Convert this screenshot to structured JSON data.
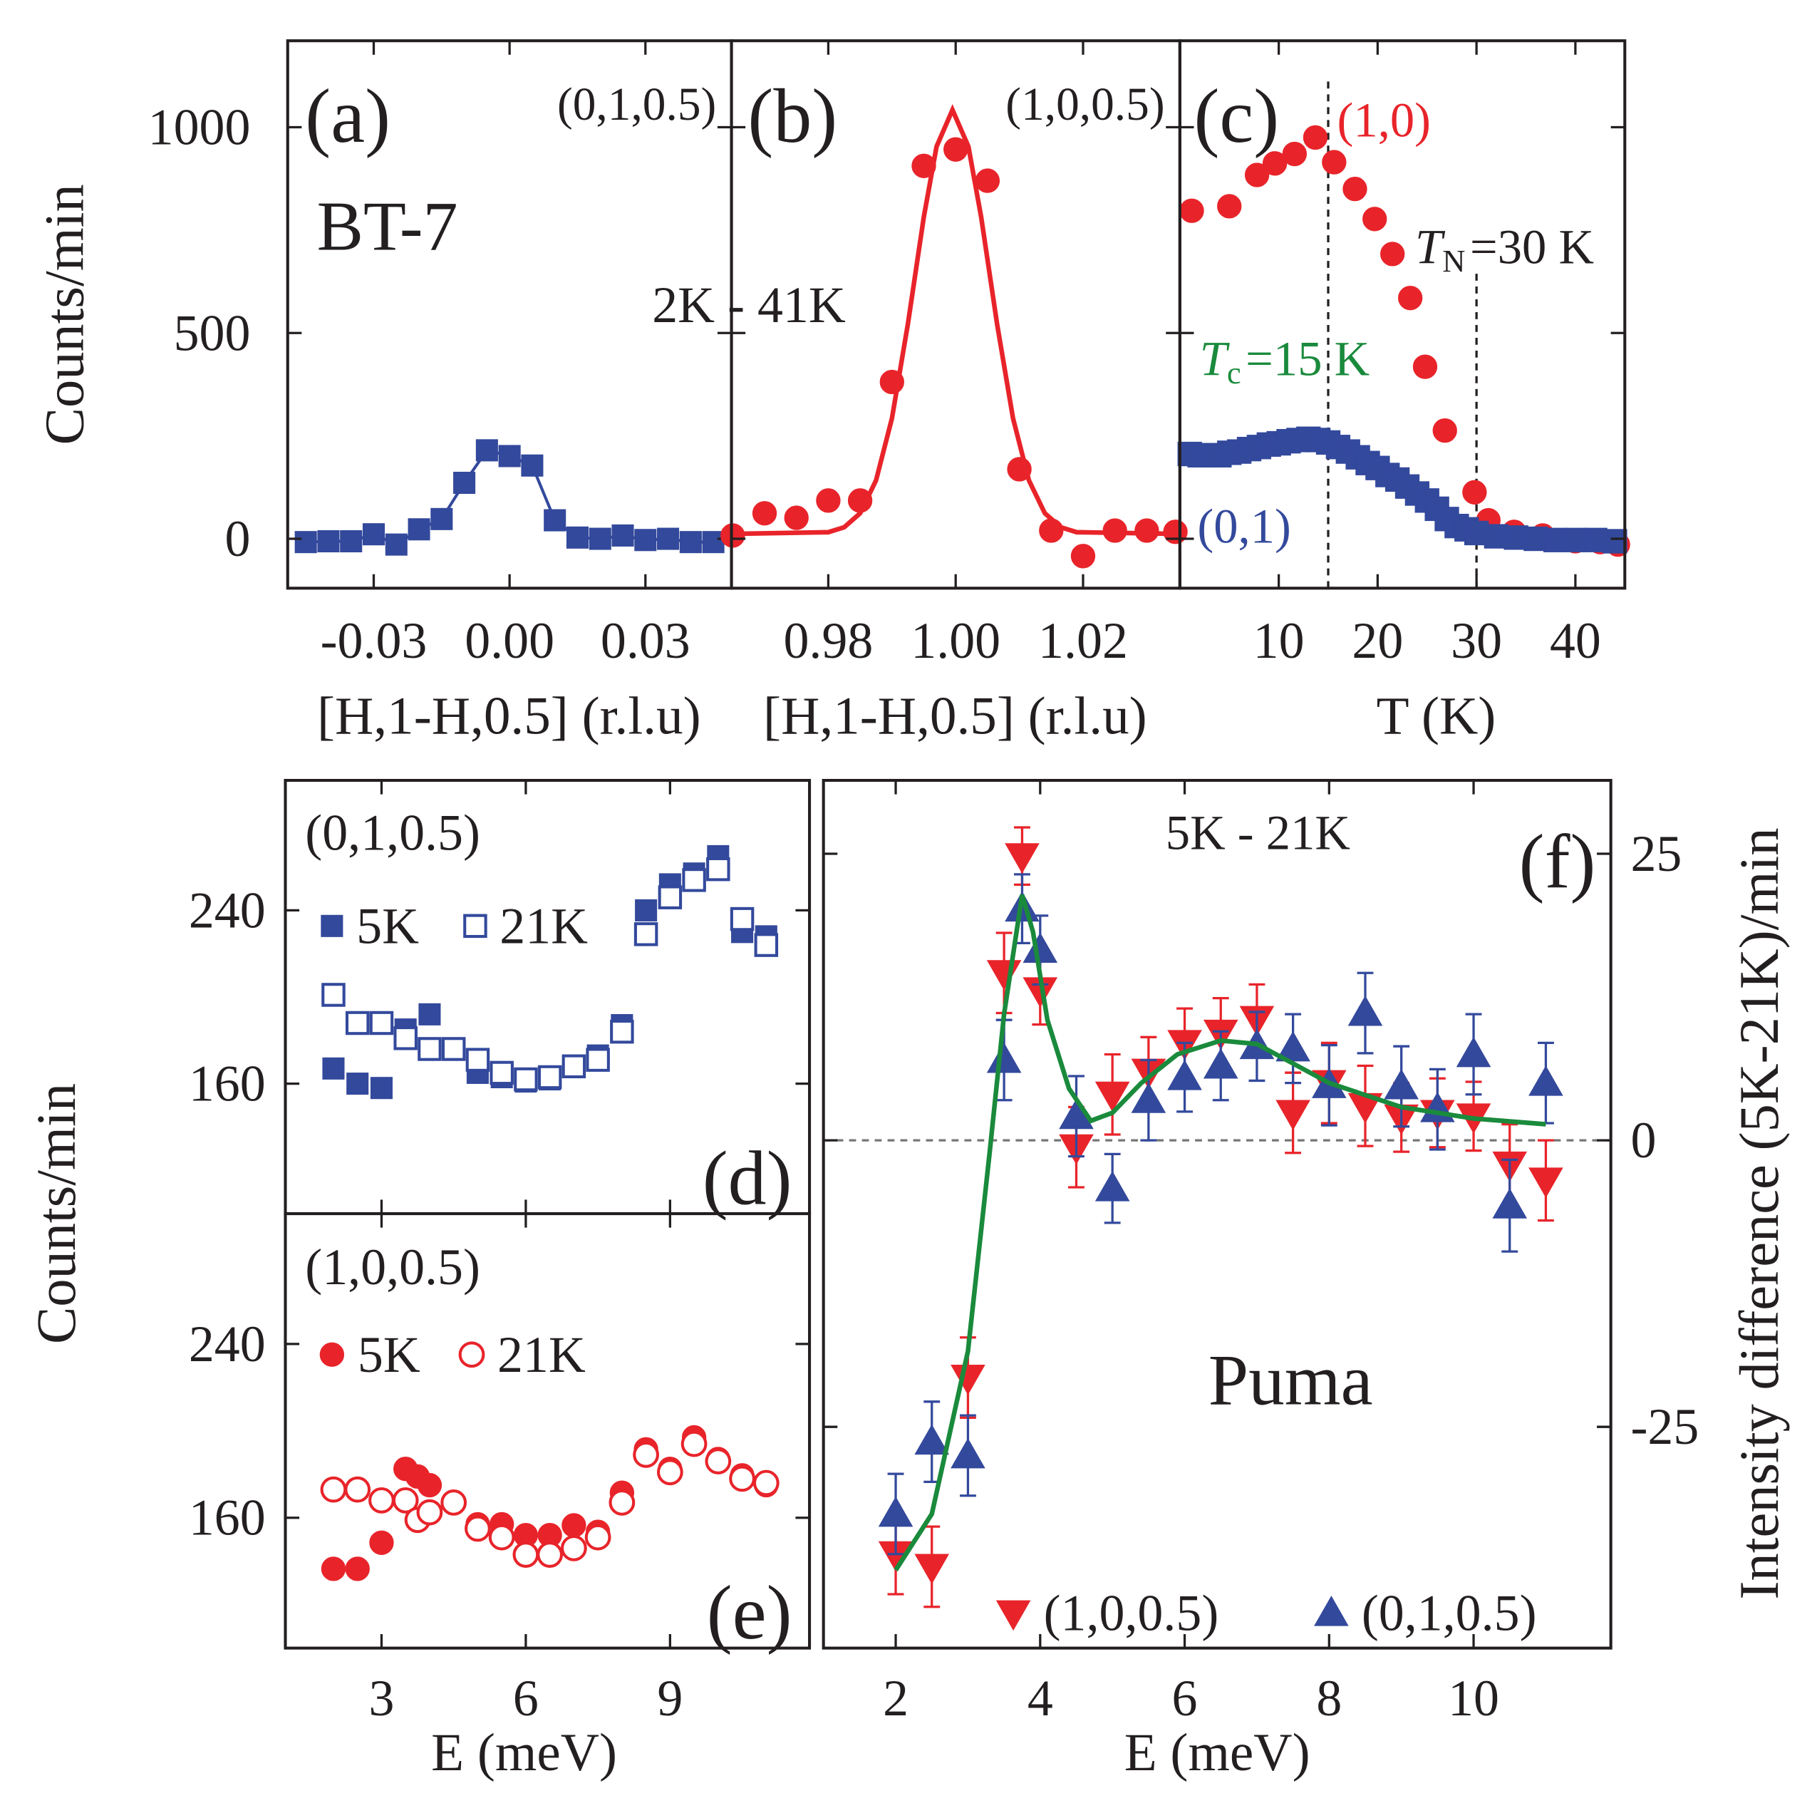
{
  "chart_data": [
    {
      "type": "scatter",
      "texts": [
        "(a)",
        "(0,1,0.5)",
        "BT-7"
      ],
      "xlabel": "[H,1-H,0.5] (r.l.u)",
      "ylabel": "Counts/min",
      "xlim": [
        -0.049,
        0.049
      ],
      "ylim": [
        -120,
        1210
      ],
      "xticks": [
        -0.03,
        {
          "value": 0,
          "label": "0.00"
        },
        0.03
      ],
      "yticks": [
        0,
        500,
        1000
      ],
      "series": [
        {
          "color": "#33499c",
          "marker": "square",
          "connect": true,
          "x": [
            -0.045,
            -0.04,
            -0.035,
            -0.03,
            -0.025,
            -0.02,
            -0.015,
            -0.01,
            -0.005,
            0,
            0.005,
            0.01,
            0.015,
            0.02,
            0.025,
            0.03,
            0.035,
            0.04,
            0.045
          ],
          "values": [
            -8,
            -6,
            -6,
            11,
            -14,
            23,
            48,
            136,
            215,
            201,
            178,
            45,
            3,
            0,
            8,
            -3,
            0,
            -8,
            -8
          ]
        }
      ]
    },
    {
      "type": "scatter",
      "texts": [
        "(b)",
        "(1,0,0.5)",
        "2K - 41K"
      ],
      "xlabel": "[H,1-H,0.5] (r.l.u)",
      "xlim": [
        0.9648,
        1.0352
      ],
      "ylim": [
        -120,
        1210
      ],
      "xticks": [
        0.98,
        {
          "value": 1,
          "label": "1.00"
        },
        1.02
      ],
      "yticks": [
        0,
        500,
        1000
      ],
      "ytick_labels": false,
      "series": [
        {
          "color": "#e8242a",
          "marker": "circle",
          "connect": false,
          "x": [
            0.965,
            0.97,
            0.975,
            0.98,
            0.985,
            0.99,
            0.995,
            1.0,
            1.005,
            1.01,
            1.015,
            1.02,
            1.025,
            1.03,
            1.0345
          ],
          "values": [
            8,
            62,
            51,
            93,
            93,
            381,
            906,
            946,
            870,
            169,
            20,
            -42,
            20,
            20,
            17
          ]
        },
        {
          "color": "#e8242a",
          "marker": "none",
          "connect": true,
          "x": [
            0.965,
            0.98,
            0.9825,
            0.985,
            0.9875,
            0.99,
            0.9925,
            0.995,
            0.997,
            0.9995,
            1.002,
            1.004,
            1.0065,
            1.009,
            1.0115,
            1.014,
            1.0165,
            1.019,
            1.035
          ],
          "values": [
            12,
            16,
            28,
            62,
            142,
            293,
            522,
            782,
            953,
            1042,
            953,
            782,
            522,
            293,
            142,
            62,
            28,
            16,
            12
          ]
        }
      ]
    },
    {
      "type": "scatter",
      "texts": [
        "(c)",
        "(1,0)",
        "(0,1)",
        {
          "symbol": "T",
          "sub": "N",
          "text": "=30 K"
        },
        {
          "symbol": "T",
          "sub": "c",
          "text": "=15 K"
        }
      ],
      "xlabel": "T (K)",
      "xlim": [
        0,
        45
      ],
      "ylim": [
        -120,
        1210
      ],
      "xticks": [
        10,
        20,
        30,
        40
      ],
      "yticks": [
        0,
        500,
        1000
      ],
      "ytick_labels": false,
      "vlines": [
        15,
        30
      ],
      "series": [
        {
          "color": "#e8242a",
          "marker": "circle",
          "connect": false,
          "x": [
            1.2,
            5.0,
            7.8,
            9.6,
            11.6,
            13.7,
            15.6,
            17.7,
            19.7,
            21.5,
            23.3,
            24.8,
            26.8,
            29.8,
            31.2,
            33.8,
            36.7,
            40,
            42.5,
            44.3
          ],
          "values": [
            797,
            808,
            884,
            912,
            935,
            975,
            915,
            850,
            777,
            692,
            585,
            418,
            263,
            113,
            45,
            17,
            8,
            -6,
            -8,
            -14
          ]
        },
        {
          "color": "#33499c",
          "marker": "square",
          "connect": false,
          "x": [
            1,
            2,
            3,
            4,
            5,
            6,
            7,
            8,
            9,
            10,
            11,
            12,
            13,
            14,
            15,
            16,
            17,
            18,
            19,
            20,
            21,
            22,
            23,
            24,
            25,
            26,
            27,
            28,
            29,
            30,
            32,
            34,
            36,
            38,
            40,
            42,
            44
          ],
          "values": [
            206,
            203,
            203,
            203,
            209,
            212,
            218,
            223,
            229,
            232,
            237,
            240,
            243,
            240,
            234,
            223,
            212,
            198,
            184,
            172,
            155,
            144,
            127,
            110,
            93,
            73,
            48,
            31,
            23,
            14,
            6,
            3,
            0,
            -3,
            -3,
            -3,
            -6
          ]
        }
      ]
    },
    {
      "type": "scatter",
      "texts": [
        "(0,1,0.5)",
        "(d)"
      ],
      "ylabel": "Counts/min",
      "xlim": [
        1,
        11.9
      ],
      "ylim": [
        100,
        300
      ],
      "xticks": [
        3,
        6,
        9
      ],
      "xtick_labels": false,
      "yticks": [
        160,
        240
      ],
      "series": [
        {
          "name": "5K",
          "color": "#33499c",
          "marker": "square",
          "connect": false,
          "x": [
            2,
            2.5,
            3,
            3.5,
            4,
            5,
            5.5,
            6,
            6.5,
            7,
            7.5,
            8,
            8.5,
            9,
            9.5,
            10,
            10.5,
            11
          ],
          "values": [
            167,
            160,
            158,
            185,
            192,
            165,
            163,
            161,
            162,
            168,
            173,
            187,
            240,
            252,
            257,
            265,
            230,
            228
          ]
        },
        {
          "name": "21K",
          "color": "#33499c",
          "marker": "square-open",
          "connect": false,
          "x": [
            2,
            2.5,
            3,
            3.5,
            4,
            4.5,
            5,
            5.5,
            6,
            6.5,
            7,
            7.5,
            8,
            8.5,
            9,
            9.5,
            10,
            10.5,
            11
          ],
          "values": [
            201,
            188,
            188,
            181,
            176,
            176,
            171,
            165,
            162,
            163,
            168,
            171,
            184,
            229,
            246,
            254,
            259,
            236,
            224
          ]
        }
      ]
    },
    {
      "type": "scatter",
      "texts": [
        "(1,0,0.5)",
        "(e)"
      ],
      "xlabel": "E (meV)",
      "xlim": [
        1,
        11.9
      ],
      "ylim": [
        100,
        300
      ],
      "xticks": [
        3,
        6,
        9
      ],
      "yticks": [
        160,
        240
      ],
      "series": [
        {
          "name": "5K",
          "color": "#e8242a",
          "marker": "circle",
          "connect": false,
          "x": [
            2,
            2.5,
            3,
            3.5,
            3.75,
            4,
            5,
            5.5,
            6,
            6.5,
            7,
            7.5,
            8,
            8.5,
            9,
            9.5,
            10,
            10.5,
            11
          ],
          "values": [
            136.5,
            136.5,
            148.5,
            182.5,
            179,
            175,
            157,
            157,
            152,
            152,
            156.5,
            153.5,
            171.5,
            191.5,
            182.5,
            197,
            187,
            179.5,
            175
          ]
        },
        {
          "name": "21K",
          "color": "#e8242a",
          "marker": "circle-open",
          "connect": false,
          "x": [
            2,
            2.5,
            3,
            3.5,
            3.75,
            4,
            4.5,
            5,
            5.5,
            6,
            6.5,
            7,
            7.5,
            8,
            8.5,
            9,
            9.5,
            10,
            10.5,
            11
          ],
          "values": [
            173,
            173,
            168,
            168,
            159,
            162.5,
            167,
            155,
            151,
            143,
            143,
            146,
            151,
            167,
            189,
            181,
            194,
            186,
            178,
            176
          ]
        }
      ]
    },
    {
      "type": "scatter",
      "texts": [
        "5K - 21K",
        "(f)",
        "Puma"
      ],
      "xlabel": "E (meV)",
      "ylabel": "Intensity difference (5K-21K)/min",
      "xlim": [
        1,
        11.9
      ],
      "ylim": [
        -44.3,
        31.4
      ],
      "xticks": [
        2,
        4,
        6,
        8,
        10
      ],
      "yticks": [
        -25,
        0,
        25
      ],
      "yaxis": "right",
      "hlines": [
        0
      ],
      "series": [
        {
          "name": "(1,0,0.5)",
          "color": "#e8242a",
          "marker": "triangle-down",
          "connect": false,
          "x": [
            2,
            2.5,
            3,
            3.5,
            3.75,
            4,
            4.5,
            5,
            5.5,
            6,
            6.5,
            7,
            7.5,
            8,
            8.5,
            9,
            9.5,
            10,
            10.5,
            11
          ],
          "values": [
            -36.1,
            -37.2,
            -20.7,
            14.6,
            24.8,
            13.1,
            -0.6,
            4.0,
            6.0,
            8.5,
            9.4,
            10.6,
            2.4,
            5.0,
            3.0,
            2.0,
            2.4,
            2.1,
            -2.1,
            -3.5
          ],
          "errors": [
            3.5,
            3.5,
            3.5,
            3.5,
            2.5,
            3,
            3.5,
            3.5,
            3,
            3,
            3,
            3,
            3.5,
            3.5,
            3.5,
            3,
            3,
            3,
            3.5,
            3.5
          ]
        },
        {
          "name": "(0,1,0.5)",
          "color": "#33499c",
          "marker": "triangle-up",
          "connect": false,
          "x": [
            2,
            2.5,
            3,
            3.5,
            3.75,
            4,
            4.5,
            5,
            5.5,
            6,
            6.5,
            7,
            7.5,
            8,
            8.5,
            9,
            9.5,
            10,
            10.5,
            11
          ],
          "values": [
            -32.6,
            -26.3,
            -27.5,
            7.0,
            20.2,
            16.6,
            2.1,
            -4.2,
            3.5,
            5.5,
            6.5,
            8.2,
            8.0,
            4.8,
            11.1,
            4.7,
            2.7,
            7.5,
            -5.7,
            5.0
          ],
          "errors": [
            3.5,
            3.5,
            3.5,
            3.5,
            3,
            3,
            3.5,
            3,
            3.5,
            3,
            3,
            3,
            3,
            3.5,
            3.5,
            3.5,
            3.5,
            3.5,
            4,
            3.5
          ]
        },
        {
          "color": "#1a8a3c",
          "marker": "none",
          "connect": true,
          "x": [
            2,
            2.5,
            3,
            3.3,
            3.5,
            3.75,
            3.9,
            4.1,
            4.4,
            4.7,
            5,
            5.4,
            5.9,
            6.5,
            7,
            8,
            9,
            10,
            11
          ],
          "values": [
            -37.5,
            -32.6,
            -18.4,
            -1.1,
            11,
            21.4,
            18.2,
            10.5,
            4.5,
            1.7,
            2.4,
            5.0,
            7.5,
            8.7,
            8.4,
            5.0,
            2.9,
            1.9,
            1.4
          ]
        }
      ]
    }
  ]
}
